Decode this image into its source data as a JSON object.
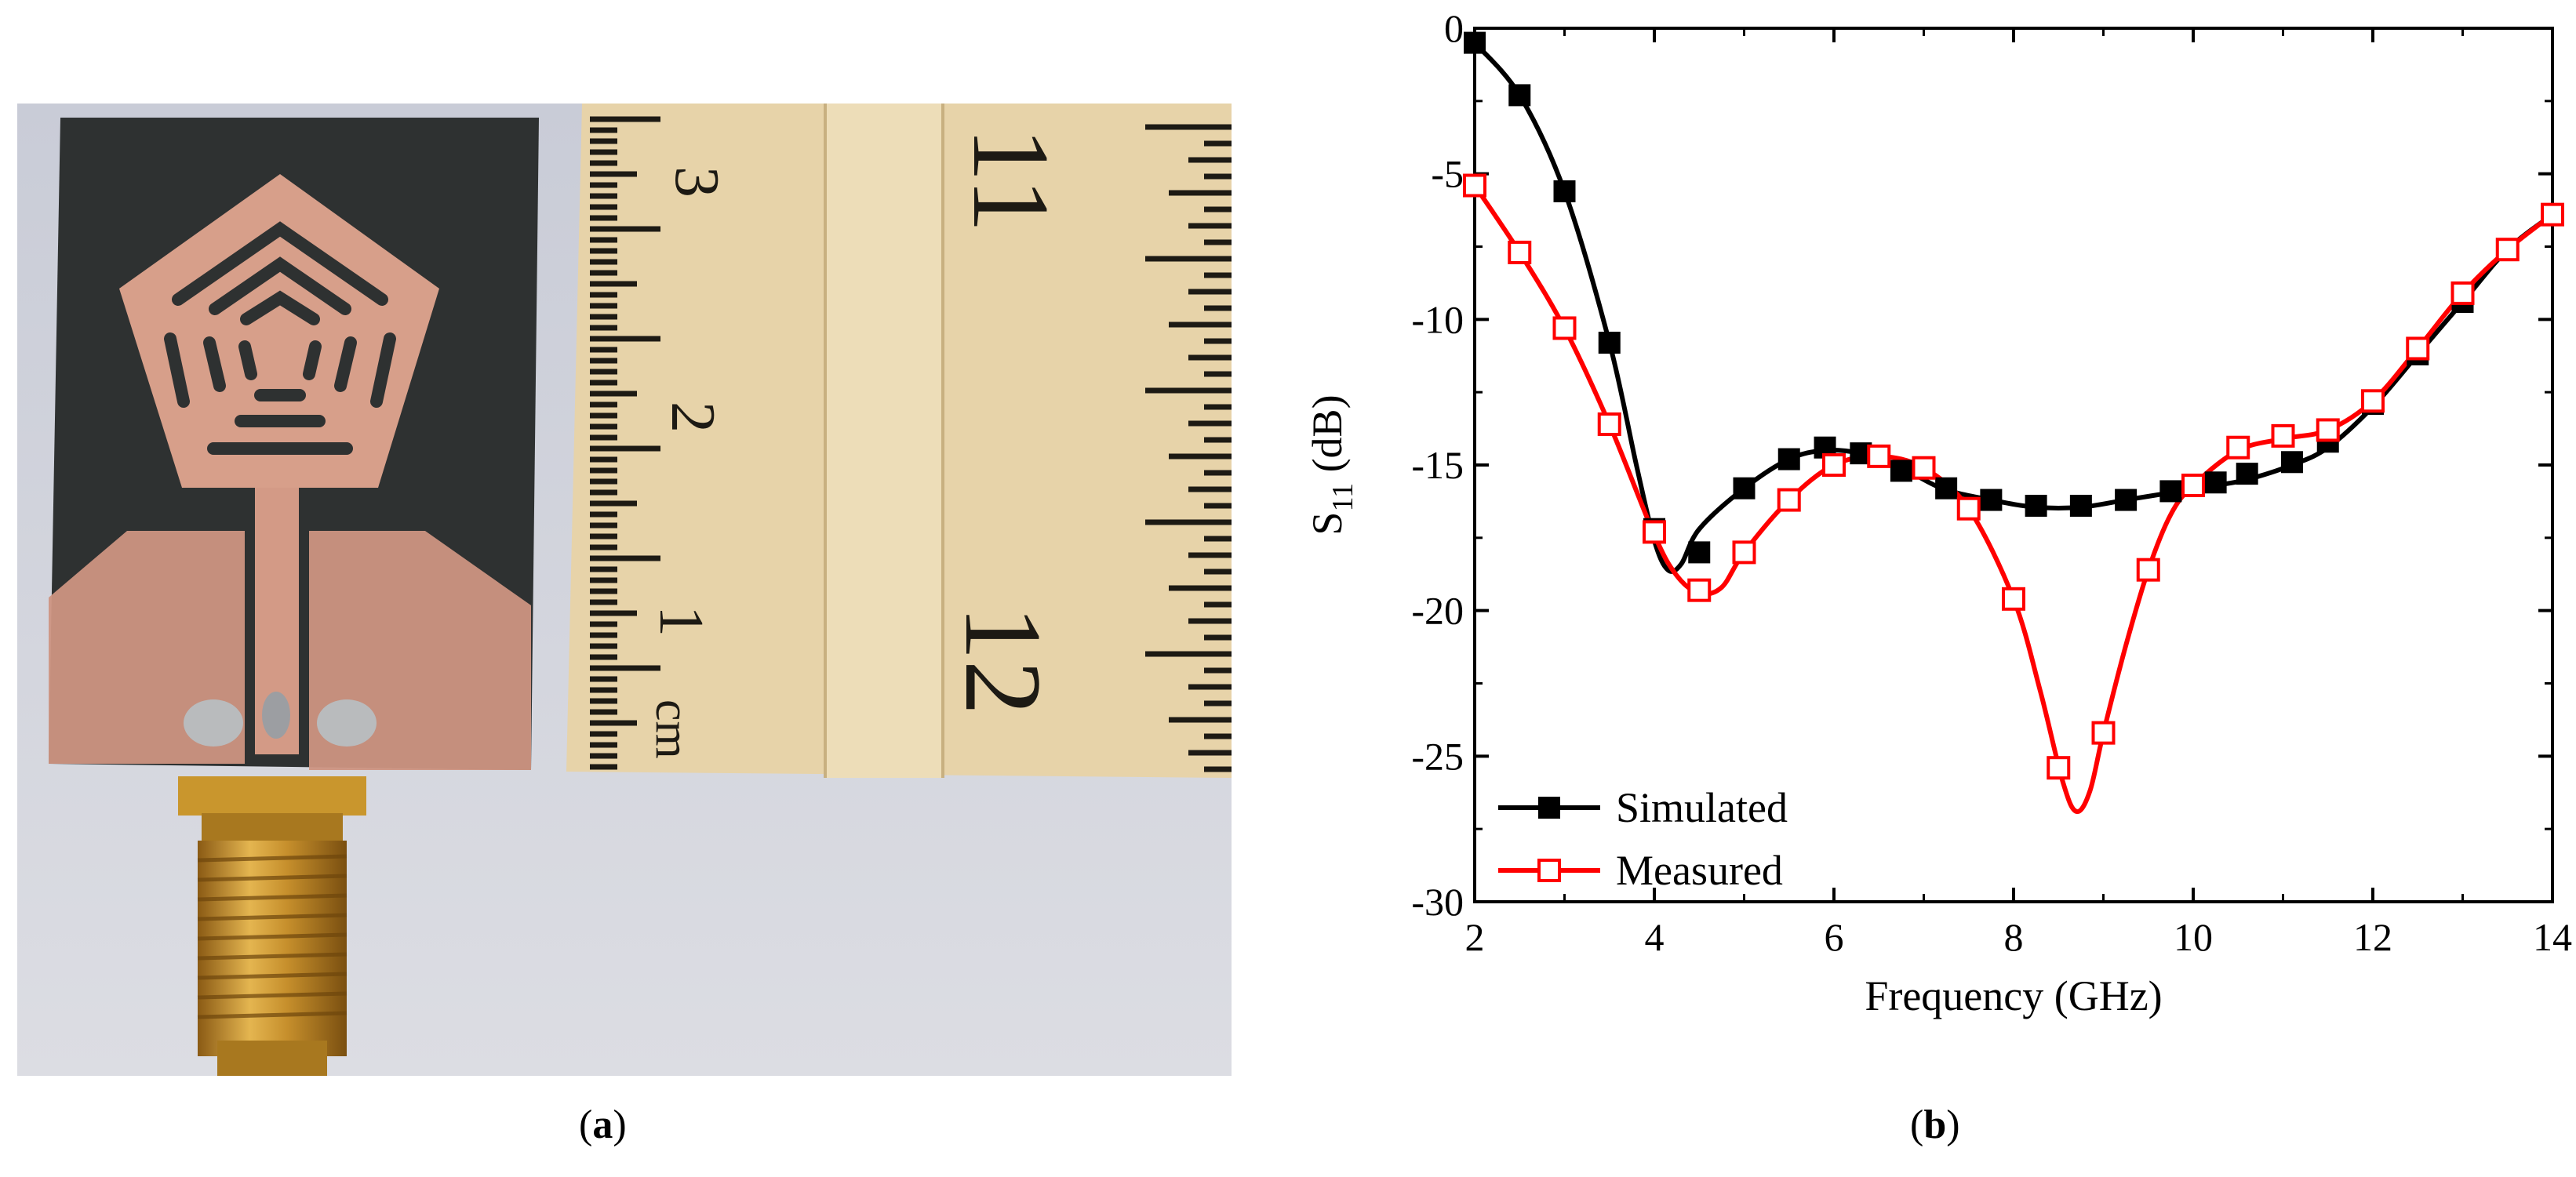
{
  "figure": {
    "caption_a": {
      "open": "(",
      "letter": "a",
      "close": ")"
    },
    "caption_b": {
      "open": "(",
      "letter": "b",
      "close": ")"
    },
    "photo": {
      "description_visible_text": [
        "cm",
        "1",
        "2",
        "3",
        "11",
        "12"
      ],
      "colors": {
        "board": "#2f3232",
        "copper": "#d39a86",
        "ruler": "#e8d6ad",
        "connector": "#c8962e",
        "background": "#d4d6df"
      }
    }
  },
  "chart_data": {
    "type": "line",
    "title": "",
    "xlabel": "Frequency (GHz)",
    "ylabel_main": "S",
    "ylabel_sub": "11",
    "ylabel_rest": " (dB)",
    "xlim": [
      2,
      14
    ],
    "ylim": [
      -30,
      0
    ],
    "xticks": [
      2,
      4,
      6,
      8,
      10,
      12,
      14
    ],
    "xtick_labels": [
      "2",
      "4",
      "6",
      "8",
      "10",
      "12",
      "14"
    ],
    "yticks": [
      0,
      -5,
      -10,
      -15,
      -20,
      -25,
      -30
    ],
    "ytick_labels": [
      "0",
      "-5",
      "-10",
      "-15",
      "-20",
      "-25",
      "-30"
    ],
    "grid": false,
    "legend_position": "bottom-left",
    "series": [
      {
        "name": "Simulated",
        "color": "#000000",
        "marker": "filled-square",
        "curve": [
          [
            2.0,
            -0.5
          ],
          [
            2.5,
            -2.3
          ],
          [
            3.0,
            -5.6
          ],
          [
            3.5,
            -10.8
          ],
          [
            3.8,
            -15.0
          ],
          [
            4.0,
            -17.6
          ],
          [
            4.15,
            -18.6
          ],
          [
            4.3,
            -18.4
          ],
          [
            4.5,
            -17.2
          ],
          [
            5.0,
            -15.8
          ],
          [
            5.5,
            -14.8
          ],
          [
            5.9,
            -14.5
          ],
          [
            6.3,
            -14.6
          ],
          [
            6.7,
            -15.0
          ],
          [
            7.2,
            -15.8
          ],
          [
            7.75,
            -16.2
          ],
          [
            8.25,
            -16.45
          ],
          [
            8.75,
            -16.45
          ],
          [
            9.25,
            -16.2
          ],
          [
            9.75,
            -15.95
          ],
          [
            10.25,
            -15.7
          ],
          [
            10.6,
            -15.5
          ],
          [
            11.1,
            -15.0
          ],
          [
            11.5,
            -14.4
          ],
          [
            12.0,
            -13.0
          ],
          [
            12.5,
            -11.2
          ],
          [
            13.0,
            -9.4
          ],
          [
            13.5,
            -7.6
          ],
          [
            14.0,
            -6.4
          ]
        ],
        "marker_points": [
          [
            2.0,
            -0.5
          ],
          [
            2.5,
            -2.3
          ],
          [
            3.0,
            -5.6
          ],
          [
            3.5,
            -10.8
          ],
          [
            4.0,
            -17.2
          ],
          [
            4.5,
            -18.0
          ],
          [
            5.0,
            -15.8
          ],
          [
            5.5,
            -14.8
          ],
          [
            5.9,
            -14.4
          ],
          [
            6.3,
            -14.6
          ],
          [
            6.75,
            -15.2
          ],
          [
            7.25,
            -15.8
          ],
          [
            7.75,
            -16.2
          ],
          [
            8.25,
            -16.4
          ],
          [
            8.75,
            -16.4
          ],
          [
            9.25,
            -16.2
          ],
          [
            9.75,
            -15.9
          ],
          [
            10.25,
            -15.6
          ],
          [
            10.6,
            -15.3
          ],
          [
            11.1,
            -14.9
          ],
          [
            11.5,
            -14.2
          ],
          [
            12.0,
            -12.9
          ],
          [
            12.5,
            -11.2
          ],
          [
            13.0,
            -9.4
          ],
          [
            13.5,
            -7.6
          ],
          [
            14.0,
            -6.4
          ]
        ]
      },
      {
        "name": "Measured",
        "color": "#ff0000",
        "marker": "open-square",
        "curve": [
          [
            2.0,
            -5.4
          ],
          [
            2.5,
            -7.7
          ],
          [
            3.0,
            -10.3
          ],
          [
            3.5,
            -13.6
          ],
          [
            4.0,
            -17.4
          ],
          [
            4.25,
            -18.8
          ],
          [
            4.5,
            -19.4
          ],
          [
            4.75,
            -19.2
          ],
          [
            5.0,
            -18.0
          ],
          [
            5.5,
            -16.2
          ],
          [
            6.0,
            -15.0
          ],
          [
            6.5,
            -14.7
          ],
          [
            7.0,
            -15.1
          ],
          [
            7.5,
            -16.5
          ],
          [
            8.0,
            -19.6
          ],
          [
            8.3,
            -22.8
          ],
          [
            8.55,
            -25.9
          ],
          [
            8.7,
            -26.9
          ],
          [
            8.85,
            -26.2
          ],
          [
            9.0,
            -24.2
          ],
          [
            9.25,
            -21.2
          ],
          [
            9.5,
            -18.6
          ],
          [
            9.75,
            -16.7
          ],
          [
            10.0,
            -15.7
          ],
          [
            10.5,
            -14.5
          ],
          [
            11.0,
            -14.1
          ],
          [
            11.5,
            -13.8
          ],
          [
            12.0,
            -12.8
          ],
          [
            12.5,
            -11.0
          ],
          [
            13.0,
            -9.1
          ],
          [
            13.5,
            -7.6
          ],
          [
            14.0,
            -6.4
          ]
        ],
        "marker_points": [
          [
            2.0,
            -5.4
          ],
          [
            2.5,
            -7.7
          ],
          [
            3.0,
            -10.3
          ],
          [
            3.5,
            -13.6
          ],
          [
            4.0,
            -17.3
          ],
          [
            4.5,
            -19.3
          ],
          [
            5.0,
            -18.0
          ],
          [
            5.5,
            -16.2
          ],
          [
            6.0,
            -15.0
          ],
          [
            6.5,
            -14.7
          ],
          [
            7.0,
            -15.1
          ],
          [
            7.5,
            -16.5
          ],
          [
            8.0,
            -19.6
          ],
          [
            8.5,
            -25.4
          ],
          [
            9.0,
            -24.2
          ],
          [
            9.5,
            -18.6
          ],
          [
            10.0,
            -15.7
          ],
          [
            10.5,
            -14.4
          ],
          [
            11.0,
            -14.0
          ],
          [
            11.5,
            -13.8
          ],
          [
            12.0,
            -12.8
          ],
          [
            12.5,
            -11.0
          ],
          [
            13.0,
            -9.1
          ],
          [
            13.5,
            -7.6
          ],
          [
            14.0,
            -6.4
          ]
        ]
      }
    ]
  }
}
